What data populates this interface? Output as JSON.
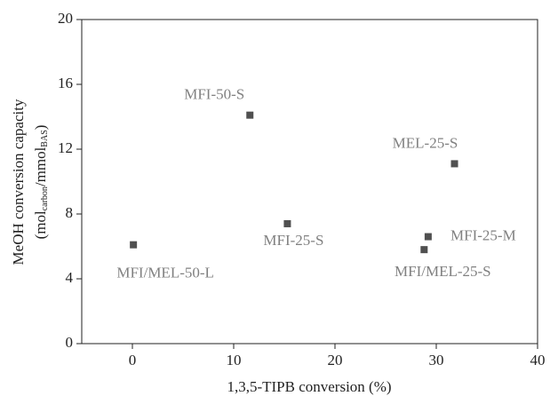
{
  "chart_data": {
    "type": "scatter",
    "xlabel": "1,3,5-TIPB conversion (%)",
    "ylabel": {
      "line1": "MeOH conversion capacity",
      "line2": [
        "(mol",
        "carbon",
        "/mmol",
        "BAS",
        ")"
      ]
    },
    "labels": [
      "MFI/MEL-50-L",
      "MFI-50-S",
      "MFI-25-S",
      "MEL-25-S",
      "MFI-25-M",
      "MFI/MEL-25-S"
    ],
    "x": [
      0.1,
      11.6,
      15.3,
      31.8,
      29.2,
      28.8
    ],
    "values": [
      6.1,
      14.1,
      7.4,
      11.1,
      6.6,
      5.8
    ],
    "color": "#505050",
    "xlim": [
      -5,
      40
    ],
    "xticks": [
      0,
      10,
      20,
      30,
      40
    ],
    "ylim": [
      0,
      20
    ],
    "yticks": [
      0,
      4,
      8,
      12,
      16,
      20
    ]
  }
}
